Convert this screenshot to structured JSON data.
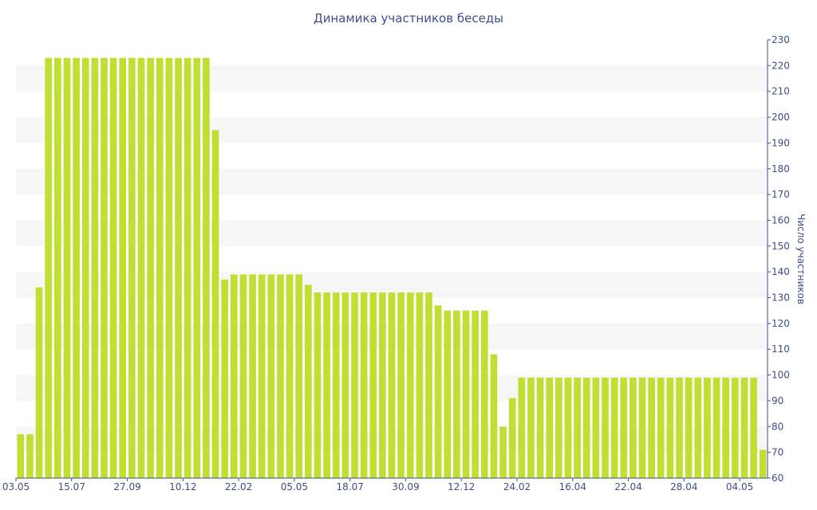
{
  "chart_data": {
    "type": "bar",
    "title": "Динамика участников беседы",
    "xlabel": "",
    "ylabel": "Число участников",
    "ylim": [
      60,
      230
    ],
    "yticks": [
      60,
      70,
      80,
      90,
      100,
      110,
      120,
      130,
      140,
      150,
      160,
      170,
      180,
      190,
      200,
      210,
      220,
      230
    ],
    "y_axis_position": "right",
    "grid": "alternating horizontal bands",
    "bar_color": "#bfe032",
    "band_color": "#f6f6f6",
    "text_color": "#3b4f8a",
    "x_tick_labels": [
      "03.05",
      "15.07",
      "27.09",
      "10.12",
      "22.02",
      "05.05",
      "18.07",
      "30.09",
      "12.12",
      "24.02",
      "16.04",
      "22.04",
      "28.04",
      "04.05"
    ],
    "values": [
      77,
      77,
      134,
      223,
      223,
      223,
      223,
      223,
      223,
      223,
      223,
      223,
      223,
      223,
      223,
      223,
      223,
      223,
      223,
      223,
      223,
      195,
      137,
      139,
      139,
      139,
      139,
      139,
      139,
      139,
      139,
      135,
      132,
      132,
      132,
      132,
      132,
      132,
      132,
      132,
      132,
      132,
      132,
      132,
      132,
      127,
      125,
      125,
      125,
      125,
      125,
      108,
      80,
      91,
      99,
      99,
      99,
      99,
      99,
      99,
      99,
      99,
      99,
      99,
      99,
      99,
      99,
      99,
      99,
      99,
      99,
      99,
      99,
      99,
      99,
      99,
      99,
      99,
      99,
      99,
      71
    ]
  }
}
